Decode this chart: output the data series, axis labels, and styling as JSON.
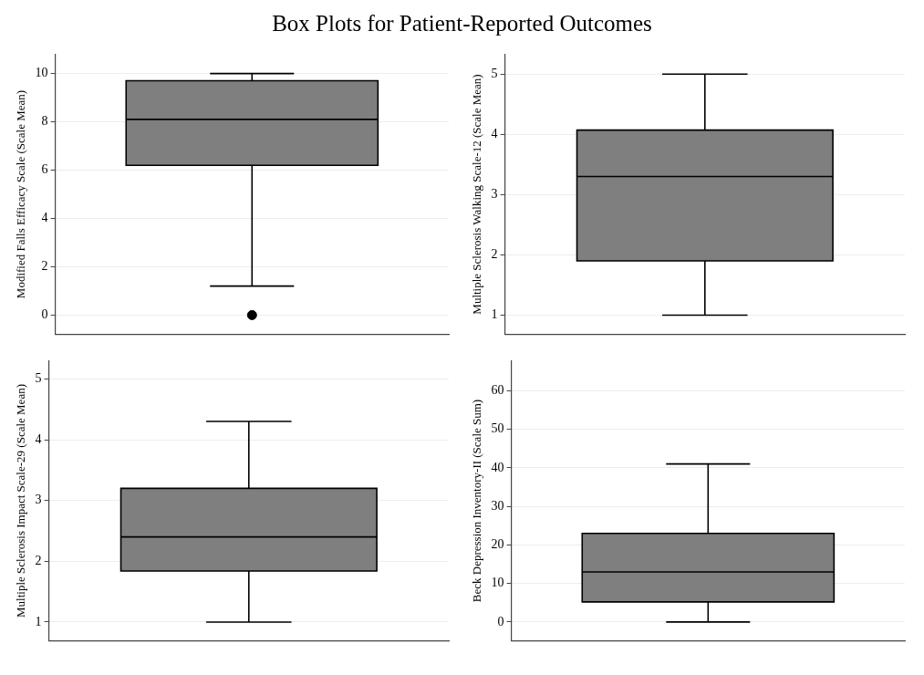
{
  "chart_data": [
    {
      "type": "box",
      "title": "Box Plots for Patient-Reported Outcomes",
      "ylabel": "Modified Falls Efficacy Scale (Scale Mean)",
      "categories": [
        null
      ],
      "ylim": [
        -0.8,
        10.8
      ],
      "yticks": [
        0,
        2,
        4,
        6,
        8,
        10
      ],
      "grid": "y",
      "tick_labels": "y",
      "series": [
        {
          "color": "#7f7f7f",
          "boxes": [
            {
              "low": 1.2,
              "q1": 6.2,
              "median": 8.1,
              "q3": 9.7,
              "high": 10,
              "outliers": [
                0
              ]
            }
          ]
        }
      ]
    },
    {
      "type": "box",
      "ylabel": "Multiple Sclerosis Walking Scale-12 (Scale Mean)",
      "categories": [
        null
      ],
      "ylim": [
        0.68,
        5.33
      ],
      "yticks": [
        1,
        2,
        3,
        4,
        5
      ],
      "grid": "y",
      "tick_labels": "y",
      "series": [
        {
          "color": "#7f7f7f",
          "boxes": [
            {
              "low": 1,
              "q1": 1.9,
              "median": 3.3,
              "q3": 4.07,
              "high": 5
            }
          ]
        }
      ]
    },
    {
      "type": "box",
      "ylabel": "Multiple Sclerosis Impact Scale-29 (Scale Mean)",
      "categories": [
        null
      ],
      "ylim": [
        0.69,
        5.3
      ],
      "yticks": [
        1,
        2,
        3,
        4,
        5
      ],
      "grid": "y",
      "tick_labels": "y",
      "series": [
        {
          "color": "#7f7f7f",
          "boxes": [
            {
              "low": 1,
              "q1": 1.84,
              "median": 2.4,
              "q3": 3.2,
              "high": 4.3
            }
          ]
        }
      ]
    },
    {
      "type": "box",
      "ylabel": "Beck Depression Inventory-II (Scale Sum)",
      "categories": [
        null
      ],
      "ylim": [
        -4.9,
        67.8
      ],
      "yticks": [
        0,
        10,
        20,
        30,
        40,
        50,
        60
      ],
      "grid": "y",
      "tick_labels": "y",
      "series": [
        {
          "color": "#7f7f7f",
          "boxes": [
            {
              "low": 0,
              "q1": 5.2,
              "median": 13,
              "q3": 23,
              "high": 41
            }
          ]
        }
      ]
    }
  ]
}
